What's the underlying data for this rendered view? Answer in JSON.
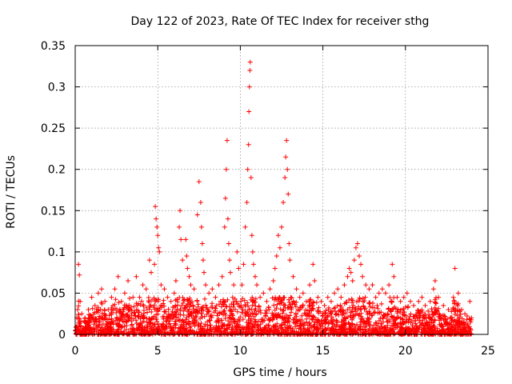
{
  "chart_data": {
    "type": "scatter",
    "title": "Day 122 of 2023, Rate Of TEC Index for receiver sthg",
    "xlabel": "GPS time / hours",
    "ylabel": "ROTI / TECUs",
    "xlim": [
      0,
      25
    ],
    "ylim": [
      0,
      0.35
    ],
    "xticks": [
      "0",
      "5",
      "10",
      "15",
      "20",
      "25"
    ],
    "yticks": [
      "0",
      "0.05",
      "0.1",
      "0.15",
      "0.2",
      "0.25",
      "0.3",
      "0.35"
    ],
    "grid": true,
    "marker": "plus",
    "series": [
      {
        "color": "#ff0000",
        "points": [
          [
            0.05,
            0.005
          ],
          [
            0.1,
            0.02
          ],
          [
            0.15,
            0.03
          ],
          [
            0.2,
            0.085
          ],
          [
            0.25,
            0.072
          ],
          [
            0.3,
            0.04
          ],
          [
            0.4,
            0.025
          ],
          [
            0.6,
            0.02
          ],
          [
            0.8,
            0.03
          ],
          [
            1.0,
            0.045
          ],
          [
            1.2,
            0.035
          ],
          [
            1.4,
            0.05
          ],
          [
            1.6,
            0.055
          ],
          [
            1.8,
            0.04
          ],
          [
            2.0,
            0.03
          ],
          [
            2.2,
            0.045
          ],
          [
            2.4,
            0.055
          ],
          [
            2.6,
            0.07
          ],
          [
            2.8,
            0.04
          ],
          [
            3.0,
            0.05
          ],
          [
            3.2,
            0.065
          ],
          [
            3.5,
            0.045
          ],
          [
            3.7,
            0.07
          ],
          [
            3.9,
            0.045
          ],
          [
            4.1,
            0.06
          ],
          [
            4.3,
            0.055
          ],
          [
            4.5,
            0.09
          ],
          [
            4.6,
            0.075
          ],
          [
            4.85,
            0.155
          ],
          [
            4.9,
            0.14
          ],
          [
            4.95,
            0.13
          ],
          [
            5.0,
            0.12
          ],
          [
            5.05,
            0.105
          ],
          [
            5.1,
            0.1
          ],
          [
            4.8,
            0.085
          ],
          [
            5.2,
            0.06
          ],
          [
            5.4,
            0.055
          ],
          [
            5.6,
            0.045
          ],
          [
            5.8,
            0.04
          ],
          [
            6.0,
            0.05
          ],
          [
            6.1,
            0.065
          ],
          [
            6.3,
            0.13
          ],
          [
            6.35,
            0.15
          ],
          [
            6.4,
            0.115
          ],
          [
            6.5,
            0.09
          ],
          [
            6.7,
            0.115
          ],
          [
            6.75,
            0.095
          ],
          [
            6.8,
            0.08
          ],
          [
            6.9,
            0.07
          ],
          [
            7.0,
            0.06
          ],
          [
            7.2,
            0.055
          ],
          [
            7.4,
            0.145
          ],
          [
            7.5,
            0.185
          ],
          [
            7.6,
            0.16
          ],
          [
            7.65,
            0.13
          ],
          [
            7.7,
            0.11
          ],
          [
            7.75,
            0.09
          ],
          [
            7.8,
            0.075
          ],
          [
            7.9,
            0.06
          ],
          [
            8.1,
            0.05
          ],
          [
            8.3,
            0.055
          ],
          [
            8.5,
            0.045
          ],
          [
            8.7,
            0.06
          ],
          [
            8.9,
            0.07
          ],
          [
            9.05,
            0.13
          ],
          [
            9.1,
            0.165
          ],
          [
            9.15,
            0.2
          ],
          [
            9.2,
            0.235
          ],
          [
            9.25,
            0.14
          ],
          [
            9.3,
            0.11
          ],
          [
            9.35,
            0.09
          ],
          [
            9.4,
            0.075
          ],
          [
            9.6,
            0.06
          ],
          [
            9.8,
            0.1
          ],
          [
            9.9,
            0.08
          ],
          [
            10.1,
            0.06
          ],
          [
            10.2,
            0.085
          ],
          [
            10.3,
            0.13
          ],
          [
            10.4,
            0.16
          ],
          [
            10.45,
            0.2
          ],
          [
            10.5,
            0.23
          ],
          [
            10.52,
            0.27
          ],
          [
            10.55,
            0.3
          ],
          [
            10.58,
            0.32
          ],
          [
            10.6,
            0.33
          ],
          [
            10.65,
            0.19
          ],
          [
            10.7,
            0.12
          ],
          [
            10.75,
            0.1
          ],
          [
            10.8,
            0.085
          ],
          [
            10.9,
            0.07
          ],
          [
            11.0,
            0.06
          ],
          [
            11.2,
            0.045
          ],
          [
            11.4,
            0.05
          ],
          [
            11.6,
            0.04
          ],
          [
            11.8,
            0.055
          ],
          [
            12.0,
            0.065
          ],
          [
            12.1,
            0.08
          ],
          [
            12.2,
            0.095
          ],
          [
            12.3,
            0.12
          ],
          [
            12.4,
            0.105
          ],
          [
            12.5,
            0.13
          ],
          [
            12.6,
            0.16
          ],
          [
            12.7,
            0.19
          ],
          [
            12.75,
            0.215
          ],
          [
            12.8,
            0.235
          ],
          [
            12.85,
            0.2
          ],
          [
            12.9,
            0.17
          ],
          [
            12.95,
            0.11
          ],
          [
            13.0,
            0.09
          ],
          [
            13.2,
            0.07
          ],
          [
            13.4,
            0.055
          ],
          [
            13.6,
            0.045
          ],
          [
            13.8,
            0.05
          ],
          [
            14.0,
            0.04
          ],
          [
            14.2,
            0.06
          ],
          [
            14.4,
            0.085
          ],
          [
            14.5,
            0.065
          ],
          [
            14.7,
            0.045
          ],
          [
            14.9,
            0.04
          ],
          [
            15.1,
            0.035
          ],
          [
            15.3,
            0.045
          ],
          [
            15.5,
            0.04
          ],
          [
            15.7,
            0.05
          ],
          [
            15.9,
            0.055
          ],
          [
            16.1,
            0.045
          ],
          [
            16.3,
            0.06
          ],
          [
            16.5,
            0.07
          ],
          [
            16.6,
            0.08
          ],
          [
            16.7,
            0.075
          ],
          [
            16.8,
            0.065
          ],
          [
            16.9,
            0.09
          ],
          [
            17.0,
            0.105
          ],
          [
            17.1,
            0.11
          ],
          [
            17.2,
            0.095
          ],
          [
            17.3,
            0.085
          ],
          [
            17.4,
            0.07
          ],
          [
            17.6,
            0.06
          ],
          [
            17.8,
            0.055
          ],
          [
            18.0,
            0.06
          ],
          [
            18.2,
            0.045
          ],
          [
            18.4,
            0.05
          ],
          [
            18.6,
            0.055
          ],
          [
            18.8,
            0.05
          ],
          [
            19.0,
            0.06
          ],
          [
            19.2,
            0.085
          ],
          [
            19.3,
            0.07
          ],
          [
            19.5,
            0.045
          ],
          [
            19.7,
            0.04
          ],
          [
            19.9,
            0.045
          ],
          [
            20.1,
            0.05
          ],
          [
            20.3,
            0.04
          ],
          [
            20.5,
            0.035
          ],
          [
            20.8,
            0.04
          ],
          [
            21.0,
            0.045
          ],
          [
            21.2,
            0.035
          ],
          [
            21.5,
            0.04
          ],
          [
            21.7,
            0.055
          ],
          [
            21.8,
            0.065
          ],
          [
            22.0,
            0.045
          ],
          [
            22.3,
            0.035
          ],
          [
            22.6,
            0.03
          ],
          [
            22.9,
            0.045
          ],
          [
            23.0,
            0.08
          ],
          [
            23.2,
            0.05
          ],
          [
            23.4,
            0.03
          ],
          [
            23.6,
            0.025
          ],
          [
            23.9,
            0.04
          ],
          [
            24.0,
            0.02
          ]
        ]
      }
    ]
  }
}
